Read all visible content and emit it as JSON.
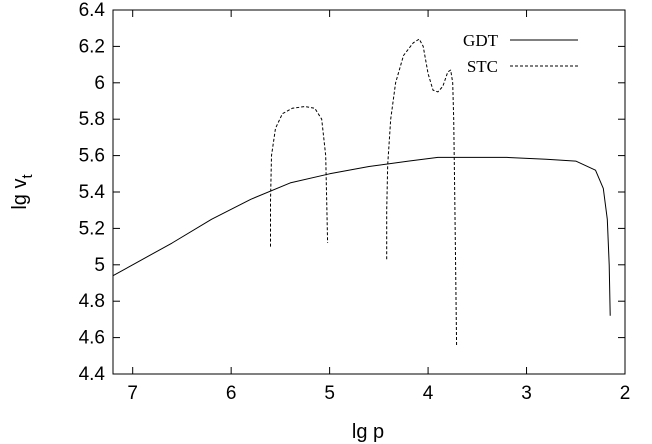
{
  "chart_data": {
    "type": "line",
    "xlabel": "lg p",
    "ylabel_main": "lg v",
    "ylabel_sub": "t",
    "xlim": [
      7.2,
      2.0
    ],
    "ylim": [
      4.4,
      6.4
    ],
    "x_ticks": [
      7,
      6,
      5,
      4,
      3,
      2
    ],
    "y_ticks": [
      4.4,
      4.6,
      4.8,
      5,
      5.2,
      5.4,
      5.6,
      5.8,
      6,
      6.2,
      6.4
    ],
    "x_tick_labels": [
      "7",
      "6",
      "5",
      "4",
      "3",
      "2"
    ],
    "y_tick_labels": [
      "4.4",
      "4.6",
      "4.8",
      "5",
      "5.2",
      "5.4",
      "5.6",
      "5.8",
      "6",
      "6.2",
      "6.4"
    ],
    "legend_position": "top-right",
    "grid": false,
    "series": [
      {
        "name": "GDT",
        "style": "solid",
        "segments": [
          [
            [
              7.2,
              4.94
            ],
            [
              7.0,
              5.0
            ],
            [
              6.6,
              5.12
            ],
            [
              6.2,
              5.25
            ],
            [
              5.8,
              5.36
            ],
            [
              5.4,
              5.45
            ],
            [
              5.0,
              5.5
            ],
            [
              4.6,
              5.54
            ],
            [
              4.2,
              5.57
            ],
            [
              3.9,
              5.59
            ],
            [
              3.6,
              5.59
            ],
            [
              3.2,
              5.59
            ],
            [
              2.8,
              5.58
            ],
            [
              2.5,
              5.57
            ],
            [
              2.3,
              5.52
            ],
            [
              2.22,
              5.42
            ],
            [
              2.18,
              5.25
            ],
            [
              2.16,
              5.0
            ],
            [
              2.15,
              4.72
            ]
          ]
        ]
      },
      {
        "name": "STC",
        "style": "dashed",
        "segments": [
          [
            [
              5.6,
              5.1
            ],
            [
              5.6,
              5.35
            ],
            [
              5.59,
              5.6
            ],
            [
              5.55,
              5.75
            ],
            [
              5.48,
              5.83
            ],
            [
              5.38,
              5.86
            ],
            [
              5.25,
              5.87
            ],
            [
              5.15,
              5.86
            ],
            [
              5.08,
              5.8
            ],
            [
              5.04,
              5.6
            ],
            [
              5.03,
              5.35
            ],
            [
              5.02,
              5.12
            ]
          ],
          [
            [
              4.42,
              5.03
            ],
            [
              4.42,
              5.3
            ],
            [
              4.41,
              5.55
            ],
            [
              4.38,
              5.8
            ],
            [
              4.33,
              6.0
            ],
            [
              4.25,
              6.15
            ],
            [
              4.15,
              6.22
            ],
            [
              4.09,
              6.24
            ],
            [
              4.05,
              6.2
            ],
            [
              4.0,
              6.05
            ],
            [
              3.95,
              5.96
            ],
            [
              3.9,
              5.95
            ],
            [
              3.85,
              5.98
            ],
            [
              3.8,
              6.06
            ],
            [
              3.77,
              6.07
            ],
            [
              3.75,
              6.0
            ],
            [
              3.74,
              5.8
            ],
            [
              3.73,
              5.4
            ],
            [
              3.72,
              5.0
            ],
            [
              3.71,
              4.55
            ]
          ]
        ]
      }
    ]
  }
}
